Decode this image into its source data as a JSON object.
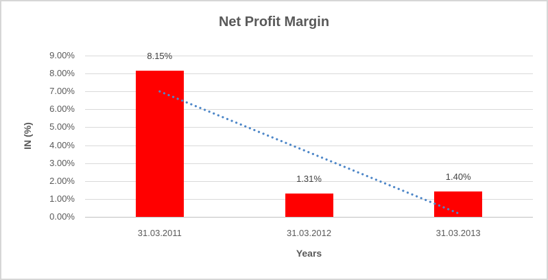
{
  "chart_data": {
    "type": "bar",
    "title": "Net Profit Margin",
    "xlabel": "Years",
    "ylabel": "IN (%)",
    "categories": [
      "31.03.2011",
      "31.03.2012",
      "31.03.2013"
    ],
    "values": [
      8.15,
      1.31,
      1.4
    ],
    "data_labels": [
      "8.15%",
      "1.31%",
      "1.40%"
    ],
    "y_ticks": [
      "9.00%",
      "8.00%",
      "7.00%",
      "6.00%",
      "5.00%",
      "4.00%",
      "3.00%",
      "2.00%",
      "1.00%",
      "0.00%"
    ],
    "ylim": [
      0,
      9
    ],
    "y_tick_step": 1,
    "grid": true,
    "legend": false,
    "bar_color": "#FF0000",
    "colors": {
      "title": "#595959",
      "axis_titles": "#595959",
      "tick_labels": "#595959",
      "data_labels": "#404040",
      "gridline": "#D9D9D9",
      "axis_line": "#BFBFBF",
      "frame_border": "#D6D6D6",
      "trendline": "#4E87C8"
    },
    "trendline": {
      "type": "linear",
      "style": "dotted",
      "color": "#4E87C8",
      "points": [
        {
          "category_index": 0,
          "value": 7.0
        },
        {
          "category_index": 2,
          "value": 0.2
        }
      ]
    }
  }
}
